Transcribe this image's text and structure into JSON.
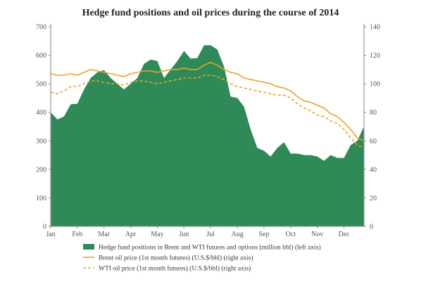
{
  "chart_data": {
    "type": "area",
    "title": "Hedge fund positions and oil prices during the course of 2014",
    "x_labels": [
      "Jan",
      "Feb",
      "Mar",
      "Apr",
      "May",
      "Jun",
      "Jul",
      "Aug",
      "Sep",
      "Oct",
      "Nov",
      "Dec"
    ],
    "y_left": {
      "min": 0,
      "max": 700,
      "ticks": [
        0,
        100,
        200,
        300,
        400,
        500,
        600,
        700
      ]
    },
    "y_right": {
      "min": 0,
      "max": 140,
      "ticks": [
        0,
        20,
        40,
        60,
        80,
        100,
        120,
        140
      ]
    },
    "grid": false,
    "legend_position": "bottom",
    "series": [
      {
        "name": "Hedge fund positions in Brent and WTI futures and options (million bbl) (left axis)",
        "axis": "left",
        "style": "area",
        "color": "#2e8b57",
        "x": [
          0,
          0.25,
          0.5,
          0.75,
          1,
          1.25,
          1.5,
          1.75,
          2,
          2.25,
          2.5,
          2.75,
          3,
          3.25,
          3.5,
          3.75,
          4,
          4.25,
          4.5,
          4.75,
          5,
          5.25,
          5.5,
          5.75,
          6,
          6.25,
          6.5,
          6.75,
          7,
          7.25,
          7.5,
          7.75,
          8,
          8.25,
          8.5,
          8.75,
          9,
          9.25,
          9.5,
          9.75,
          10,
          10.25,
          10.5,
          10.75,
          11,
          11.25,
          11.5,
          11.75
        ],
        "values": [
          400,
          375,
          385,
          428,
          430,
          480,
          520,
          540,
          548,
          520,
          500,
          480,
          500,
          520,
          570,
          585,
          580,
          520,
          550,
          580,
          615,
          588,
          590,
          635,
          635,
          620,
          560,
          455,
          450,
          420,
          340,
          275,
          265,
          245,
          275,
          295,
          255,
          255,
          250,
          250,
          245,
          230,
          250,
          240,
          240,
          285,
          300,
          350
        ]
      },
      {
        "name": "Brent oil price (1st month futures) (U.S.$/bbl) (right axis)",
        "axis": "right",
        "style": "solid",
        "color": "#f0a020",
        "x": [
          0,
          0.25,
          0.5,
          0.75,
          1,
          1.25,
          1.5,
          1.75,
          2,
          2.25,
          2.5,
          2.75,
          3,
          3.25,
          3.5,
          3.75,
          4,
          4.25,
          4.5,
          4.75,
          5,
          5.25,
          5.5,
          5.75,
          6,
          6.25,
          6.5,
          6.75,
          7,
          7.25,
          7.5,
          7.75,
          8,
          8.25,
          8.5,
          8.75,
          9,
          9.25,
          9.5,
          9.75,
          10,
          10.25,
          10.5,
          10.75,
          11,
          11.25,
          11.5,
          11.75
        ],
        "values": [
          107,
          106,
          106,
          107,
          106,
          108,
          110,
          109,
          108,
          107,
          106,
          105,
          107,
          108,
          109,
          109,
          108,
          109,
          110,
          110,
          111,
          110,
          110,
          113,
          115,
          113,
          110,
          108,
          107,
          104,
          103,
          102,
          101,
          100,
          98,
          97,
          95,
          91,
          88,
          87,
          85,
          83,
          79,
          77,
          73,
          68,
          62,
          60
        ]
      },
      {
        "name": "WTI oil price (1st month futures) (U.S.$/bbl) (right axis)",
        "axis": "right",
        "style": "dashed",
        "color": "#f0a020",
        "x": [
          0,
          0.25,
          0.5,
          0.75,
          1,
          1.25,
          1.5,
          1.75,
          2,
          2.25,
          2.5,
          2.75,
          3,
          3.25,
          3.5,
          3.75,
          4,
          4.25,
          4.5,
          4.75,
          5,
          5.25,
          5.5,
          5.75,
          6,
          6.25,
          6.5,
          6.75,
          7,
          7.25,
          7.5,
          7.75,
          8,
          8.25,
          8.5,
          8.75,
          9,
          9.25,
          9.5,
          9.75,
          10,
          10.25,
          10.5,
          10.75,
          11,
          11.25,
          11.5,
          11.75
        ],
        "values": [
          94,
          93,
          95,
          98,
          98,
          100,
          102,
          102,
          101,
          100,
          100,
          99,
          101,
          102,
          102,
          101,
          100,
          101,
          102,
          103,
          104,
          104,
          104,
          106,
          106,
          105,
          103,
          100,
          98,
          97,
          96,
          95,
          94,
          93,
          92,
          92,
          90,
          86,
          83,
          81,
          78,
          77,
          74,
          72,
          68,
          62,
          57,
          55
        ]
      }
    ]
  }
}
